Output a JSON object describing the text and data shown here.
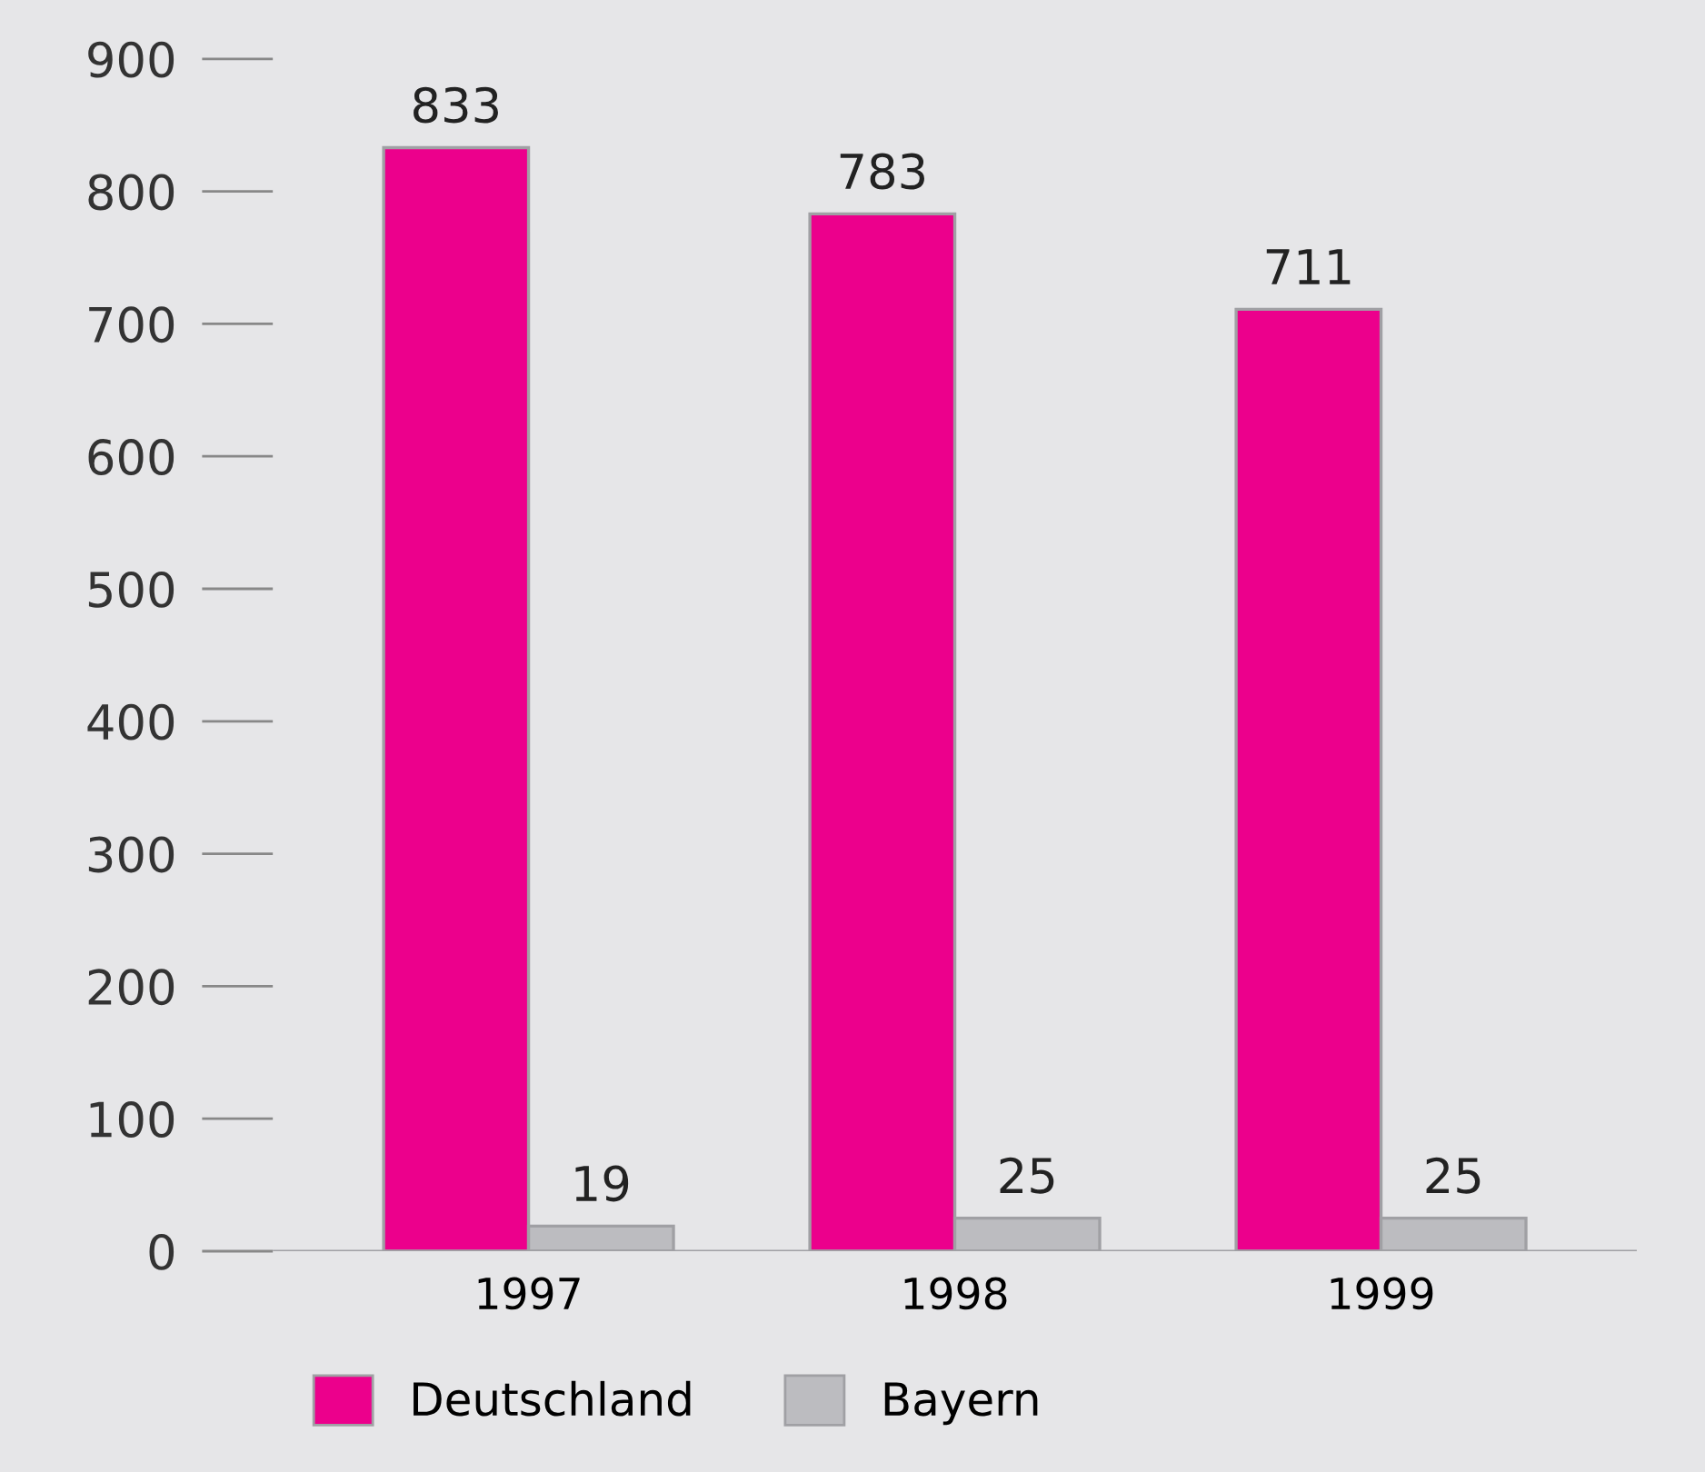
{
  "chart_data": {
    "type": "bar",
    "categories": [
      "1997",
      "1998",
      "1999"
    ],
    "series": [
      {
        "name": "Deutschland",
        "color": "#ec008c",
        "values": [
          833,
          783,
          711
        ]
      },
      {
        "name": "Bayern",
        "color": "#bcbcc0",
        "values": [
          19,
          25,
          25
        ]
      }
    ],
    "ylim": [
      0,
      900
    ],
    "yticks": [
      0,
      100,
      200,
      300,
      400,
      500,
      600,
      700,
      800,
      900
    ],
    "data_labels": true,
    "legend": "bottom left",
    "grid": false
  }
}
